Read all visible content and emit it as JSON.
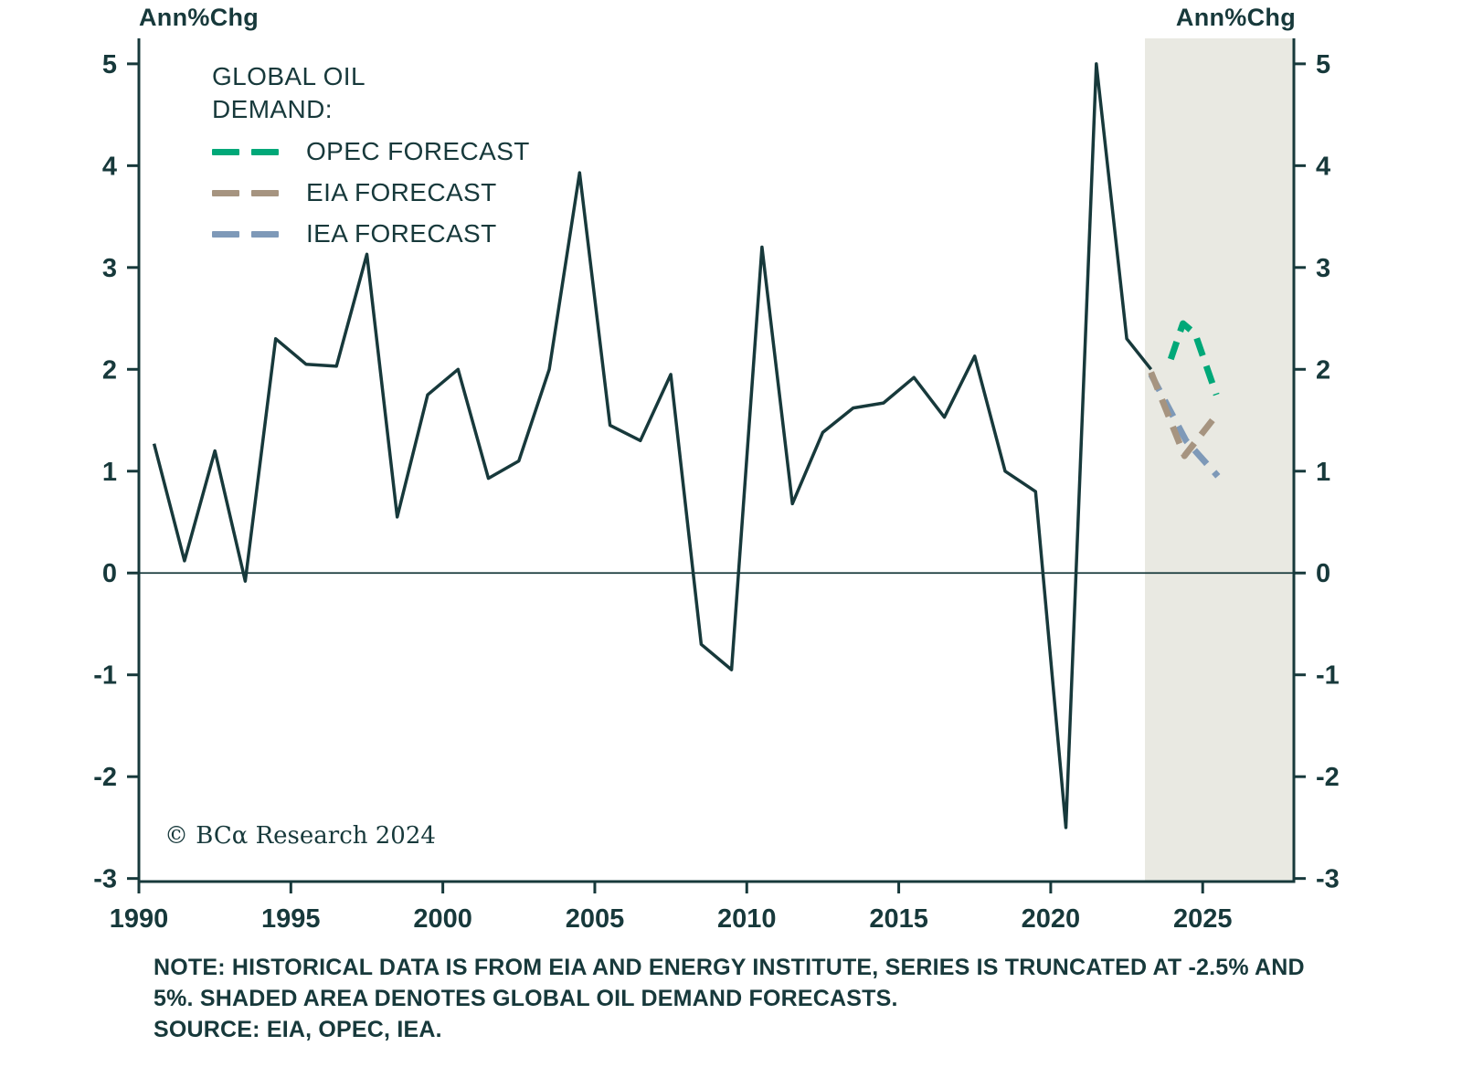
{
  "chart_data": {
    "type": "line",
    "title": "",
    "ylabel_left": "Ann%Chg",
    "ylabel_right": "Ann%Chg",
    "ylim": [
      -3,
      5
    ],
    "yticks": [
      5,
      4,
      3,
      2,
      1,
      0,
      -1,
      -2,
      -3
    ],
    "xlim": [
      1990,
      2028
    ],
    "xticks": [
      1990,
      1995,
      2000,
      2005,
      2010,
      2015,
      2020,
      2025
    ],
    "grid": false,
    "zero_line": true,
    "axis_color": "#17393B",
    "shaded_region": {
      "x_start": 2023.1,
      "x_end": 2028,
      "color": "#E9E9E2",
      "meaning": "Global oil demand forecast period"
    },
    "series": [
      {
        "name": "GLOBAL OIL DEMAND (HISTORICAL)",
        "style": "solid",
        "color": "#17393B",
        "x": [
          1990.5,
          1991.5,
          1992.5,
          1993.5,
          1994.5,
          1995.5,
          1996.5,
          1997.5,
          1998.5,
          1999.5,
          2000.5,
          2001.5,
          2002.5,
          2003.5,
          2004.5,
          2005.5,
          2006.5,
          2007.5,
          2008.5,
          2009.5,
          2010.5,
          2011.5,
          2012.5,
          2013.5,
          2014.5,
          2015.5,
          2016.5,
          2017.5,
          2018.5,
          2019.5,
          2020.5,
          2021.5,
          2022.5,
          2023.3
        ],
        "y": [
          1.27,
          0.12,
          1.2,
          -0.08,
          2.3,
          2.05,
          2.03,
          3.13,
          0.55,
          1.75,
          2.0,
          0.93,
          1.1,
          2.0,
          3.93,
          1.45,
          1.3,
          1.95,
          -0.7,
          -0.95,
          3.2,
          0.68,
          1.38,
          1.62,
          1.67,
          1.92,
          1.53,
          2.13,
          1.0,
          0.8,
          -2.5,
          5.0,
          2.3,
          2.0
        ]
      },
      {
        "name": "IEA FORECAST",
        "style": "dashed",
        "color": "#7E99B8",
        "x": [
          2023.3,
          2024.45,
          2025.5
        ],
        "y": [
          1.95,
          1.3,
          0.95
        ]
      },
      {
        "name": "EIA FORECAST",
        "style": "dashed",
        "color": "#A69480",
        "x": [
          2023.3,
          2024.4,
          2025.45
        ],
        "y": [
          1.97,
          1.15,
          1.55
        ]
      },
      {
        "name": "OPEC FORECAST",
        "style": "dashed",
        "color": "#00A878",
        "x": [
          2023.95,
          2024.35,
          2024.75,
          2025.45
        ],
        "y": [
          2.1,
          2.45,
          2.35,
          1.75
        ]
      }
    ]
  },
  "legend": {
    "title_lines": [
      "GLOBAL OIL",
      "DEMAND:"
    ],
    "entries": [
      {
        "label": "OPEC FORECAST",
        "color": "#00A878"
      },
      {
        "label": "EIA FORECAST",
        "color": "#A69480"
      },
      {
        "label": "IEA FORECAST",
        "color": "#7E99B8"
      }
    ]
  },
  "copyright": "© BCα Research 2024",
  "note": {
    "lines": [
      "NOTE: HISTORICAL DATA IS FROM EIA AND ENERGY INSTITUTE, SERIES IS TRUNCATED AT -2.5% AND",
      "5%. SHADED AREA DENOTES GLOBAL OIL DEMAND FORECASTS.",
      "SOURCE: EIA, OPEC, IEA."
    ]
  }
}
